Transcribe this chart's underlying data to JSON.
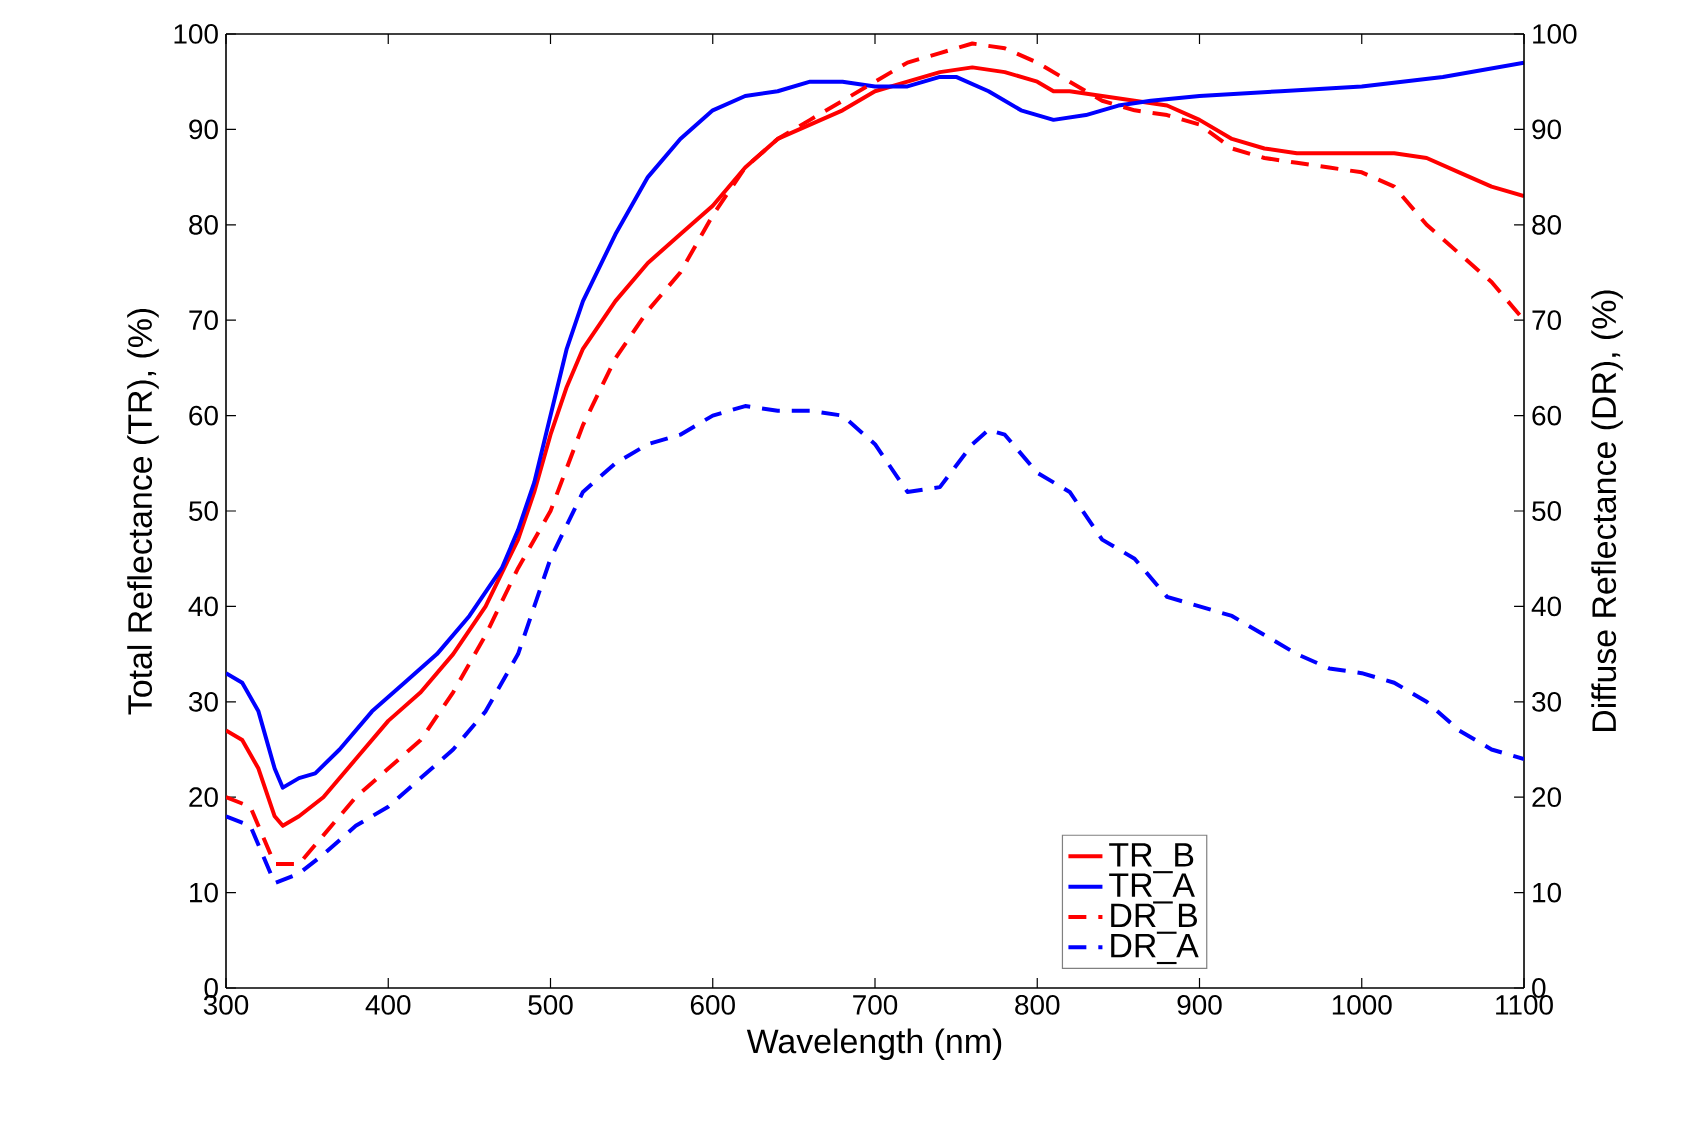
{
  "chart_data": {
    "type": "line",
    "xlabel": "Wavelength (nm)",
    "ylabel": "Total Reflectance (TR), (%)",
    "y2label": "Diffuse Reflectance (DR), (%)",
    "xlim": [
      300,
      1100
    ],
    "xticks": [
      300,
      400,
      500,
      600,
      700,
      800,
      900,
      1000,
      1100
    ],
    "ylim": [
      0,
      100
    ],
    "yticks": [
      0,
      10,
      20,
      30,
      40,
      50,
      60,
      70,
      80,
      90,
      100
    ],
    "y2lim": [
      0,
      100
    ],
    "y2ticks": [
      0,
      10,
      20,
      30,
      40,
      50,
      60,
      70,
      80,
      90,
      100
    ],
    "legend": "bottom",
    "grid": false,
    "marker": "none",
    "series": [
      {
        "name": "TR_B",
        "color": "#ff0000",
        "line_style": "solid",
        "x": [
          300,
          310,
          320,
          330,
          335,
          345,
          360,
          380,
          400,
          420,
          440,
          460,
          480,
          490,
          500,
          510,
          520,
          540,
          560,
          580,
          600,
          620,
          640,
          660,
          680,
          700,
          720,
          740,
          760,
          780,
          800,
          810,
          820,
          840,
          860,
          880,
          900,
          920,
          940,
          960,
          980,
          1000,
          1020,
          1040,
          1060,
          1080,
          1100
        ],
        "values": [
          27,
          26,
          23,
          18,
          17,
          18,
          20,
          24,
          28,
          31,
          35,
          40,
          47,
          52,
          58,
          63,
          67,
          72,
          76,
          79,
          82,
          86,
          89,
          90.5,
          92,
          94,
          95,
          96,
          96.5,
          96,
          95,
          94,
          94,
          93.5,
          93,
          92.5,
          91,
          89,
          88,
          87.5,
          87.5,
          87.5,
          87.5,
          87,
          85.5,
          84,
          83
        ]
      },
      {
        "name": "TR_A",
        "color": "#0000ff",
        "line_style": "solid",
        "x": [
          300,
          310,
          320,
          330,
          335,
          345,
          355,
          370,
          390,
          410,
          430,
          450,
          470,
          480,
          490,
          500,
          510,
          520,
          540,
          560,
          580,
          600,
          620,
          640,
          660,
          680,
          700,
          720,
          740,
          750,
          770,
          790,
          810,
          830,
          850,
          870,
          900,
          950,
          1000,
          1050,
          1100
        ],
        "values": [
          33,
          32,
          29,
          23,
          21,
          22,
          22.5,
          25,
          29,
          32,
          35,
          39,
          44,
          48,
          53,
          60,
          67,
          72,
          79,
          85,
          89,
          92,
          93.5,
          94,
          95,
          95,
          94.5,
          94.5,
          95.5,
          95.5,
          94,
          92,
          91,
          91.5,
          92.5,
          93,
          93.5,
          94,
          94.5,
          95.5,
          97
        ]
      },
      {
        "name": "DR_B",
        "color": "#ff0000",
        "line_style": "dashed",
        "axis": "y2",
        "x": [
          300,
          315,
          330,
          345,
          360,
          380,
          400,
          420,
          440,
          460,
          480,
          500,
          520,
          540,
          560,
          580,
          600,
          620,
          640,
          660,
          680,
          700,
          720,
          740,
          760,
          780,
          800,
          820,
          840,
          860,
          880,
          900,
          920,
          940,
          960,
          980,
          1000,
          1020,
          1040,
          1060,
          1080,
          1100
        ],
        "values": [
          20,
          19,
          13,
          13,
          16,
          20,
          23,
          26,
          31,
          37,
          44,
          50,
          59,
          66,
          71,
          75,
          81,
          86,
          89,
          91,
          93,
          95,
          97,
          98,
          99,
          98.5,
          97,
          95,
          93,
          92,
          91.5,
          90.5,
          88,
          87,
          86.5,
          86,
          85.5,
          84,
          80,
          77,
          74,
          70
        ]
      },
      {
        "name": "DR_A",
        "color": "#0000ff",
        "line_style": "dashed",
        "axis": "y2",
        "x": [
          300,
          315,
          330,
          345,
          360,
          380,
          400,
          420,
          440,
          460,
          480,
          490,
          500,
          520,
          540,
          560,
          580,
          600,
          620,
          640,
          660,
          680,
          700,
          720,
          740,
          760,
          770,
          780,
          800,
          820,
          840,
          860,
          880,
          900,
          920,
          940,
          960,
          980,
          1000,
          1020,
          1040,
          1060,
          1080,
          1100
        ],
        "values": [
          18,
          17,
          11,
          12,
          14,
          17,
          19,
          22,
          25,
          29,
          35,
          40,
          45,
          52,
          55,
          57,
          58,
          60,
          61,
          60.5,
          60.5,
          60,
          57,
          52,
          52.5,
          57,
          58.5,
          58,
          54,
          52,
          47,
          45,
          41,
          40,
          39,
          37,
          35,
          33.5,
          33,
          32,
          30,
          27,
          25,
          24
        ]
      }
    ]
  }
}
